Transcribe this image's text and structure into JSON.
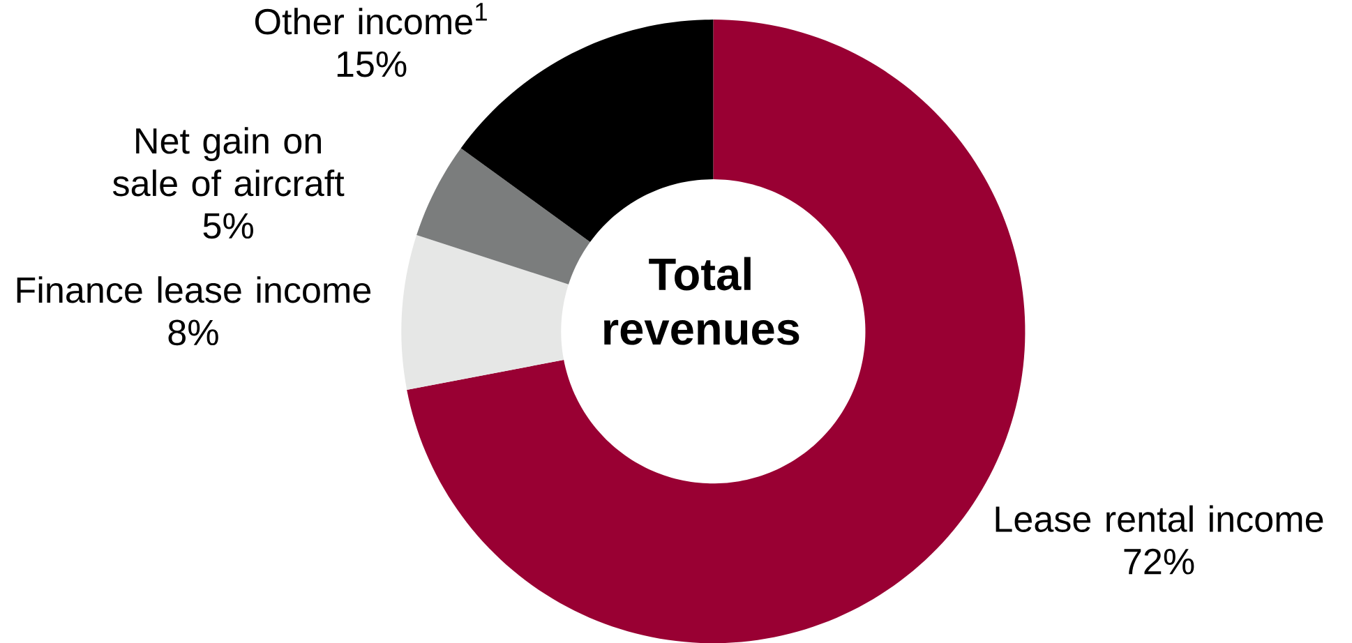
{
  "chart_data": {
    "type": "donut",
    "title": "Total revenues",
    "categories": [
      "Lease rental income",
      "Finance lease income",
      "Net gain on sale of aircraft",
      "Other income$^{1}$"
    ],
    "values": [
      72,
      8,
      5,
      15
    ],
    "colors": [
      "#990033",
      "#e6e7e6",
      "#7b7d7d",
      "#000000"
    ],
    "value_labels": [
      "72%",
      "8%",
      "5%",
      "15%"
    ]
  }
}
